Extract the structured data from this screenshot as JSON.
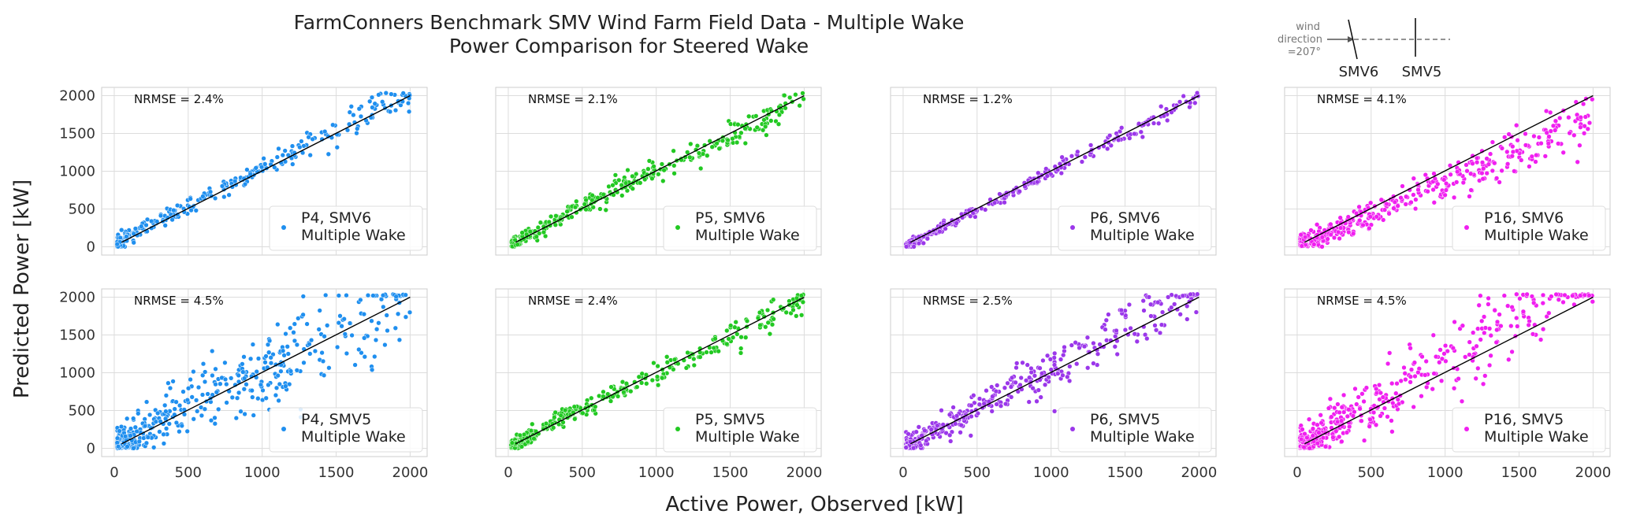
{
  "figure": {
    "title_line1": "FarmConners Benchmark SMV Wind Farm Field Data - Multiple Wake",
    "title_line2": "Power Comparison for Steered Wake",
    "xlabel": "Active Power, Observed [kW]",
    "ylabel": "Predicted Power [kW]"
  },
  "inset": {
    "wind_label_line1": "wind",
    "wind_label_line2": "direction",
    "wind_label_line3": "=207°",
    "turbine_a": "SMV6",
    "turbine_b": "SMV5"
  },
  "colors": {
    "P4": "#1f8fef",
    "P5": "#22c922",
    "P6": "#9b37ea",
    "P16": "#f01ff0",
    "identity_line": "#000000",
    "grid": "#dcdcdc",
    "frame": "#cccccc"
  },
  "chart_data": [
    {
      "type": "scatter",
      "row": 0,
      "col": 0,
      "legend": "P4, SMV6",
      "legend_line2": "Multiple Wake",
      "annotation": "NRMSE = 2.4%",
      "color_key": "P4",
      "profile": "tight_over",
      "xlim": [
        -85,
        2115
      ],
      "ylim": [
        -110,
        2110
      ],
      "xticks": [
        0,
        500,
        1000,
        1500,
        2000
      ],
      "yticks": [
        0,
        500,
        1000,
        1500,
        2000
      ],
      "identity_line": [
        [
          50,
          60
        ],
        [
          2000,
          2000
        ]
      ]
    },
    {
      "type": "scatter",
      "row": 0,
      "col": 1,
      "legend": "P5, SMV6",
      "legend_line2": "Multiple Wake",
      "annotation": "NRMSE = 2.1%",
      "color_key": "P5",
      "profile": "tight_mid",
      "xlim": [
        -85,
        2115
      ],
      "ylim": [
        -110,
        2110
      ],
      "xticks": [
        0,
        500,
        1000,
        1500,
        2000
      ],
      "yticks": [
        0,
        500,
        1000,
        1500,
        2000
      ],
      "identity_line": [
        [
          50,
          60
        ],
        [
          2000,
          2000
        ]
      ]
    },
    {
      "type": "scatter",
      "row": 0,
      "col": 2,
      "legend": "P6, SMV6",
      "legend_line2": "Multiple Wake",
      "annotation": "NRMSE = 1.2%",
      "color_key": "P6",
      "profile": "very_tight",
      "xlim": [
        -85,
        2115
      ],
      "ylim": [
        -110,
        2110
      ],
      "xticks": [
        0,
        500,
        1000,
        1500,
        2000
      ],
      "yticks": [
        0,
        500,
        1000,
        1500,
        2000
      ],
      "identity_line": [
        [
          50,
          60
        ],
        [
          2000,
          2000
        ]
      ]
    },
    {
      "type": "scatter",
      "row": 0,
      "col": 3,
      "legend": "P16, SMV6",
      "legend_line2": "Multiple Wake",
      "annotation": "NRMSE = 4.1%",
      "color_key": "P16",
      "profile": "under",
      "xlim": [
        -85,
        2115
      ],
      "ylim": [
        -110,
        2110
      ],
      "xticks": [
        0,
        500,
        1000,
        1500,
        2000
      ],
      "yticks": [
        0,
        500,
        1000,
        1500,
        2000
      ],
      "identity_line": [
        [
          50,
          60
        ],
        [
          2000,
          2000
        ]
      ]
    },
    {
      "type": "scatter",
      "row": 1,
      "col": 0,
      "legend": "P4, SMV5",
      "legend_line2": "Multiple Wake",
      "annotation": "NRMSE = 4.5%",
      "color_key": "P4",
      "profile": "wide",
      "xlim": [
        -85,
        2115
      ],
      "ylim": [
        -110,
        2110
      ],
      "xticks": [
        0,
        500,
        1000,
        1500,
        2000
      ],
      "yticks": [
        0,
        500,
        1000,
        1500,
        2000
      ],
      "identity_line": [
        [
          50,
          60
        ],
        [
          2000,
          2000
        ]
      ]
    },
    {
      "type": "scatter",
      "row": 1,
      "col": 1,
      "legend": "P5, SMV5",
      "legend_line2": "Multiple Wake",
      "annotation": "NRMSE = 2.4%",
      "color_key": "P5",
      "profile": "tight_mid",
      "xlim": [
        -85,
        2115
      ],
      "ylim": [
        -110,
        2110
      ],
      "xticks": [
        0,
        500,
        1000,
        1500,
        2000
      ],
      "yticks": [
        0,
        500,
        1000,
        1500,
        2000
      ],
      "identity_line": [
        [
          50,
          60
        ],
        [
          2000,
          2000
        ]
      ]
    },
    {
      "type": "scatter",
      "row": 1,
      "col": 2,
      "legend": "P6, SMV5",
      "legend_line2": "Multiple Wake",
      "annotation": "NRMSE = 2.5%",
      "color_key": "P6",
      "profile": "mid_over",
      "xlim": [
        -85,
        2115
      ],
      "ylim": [
        -110,
        2110
      ],
      "xticks": [
        0,
        500,
        1000,
        1500,
        2000
      ],
      "yticks": [
        0,
        500,
        1000,
        1500,
        2000
      ],
      "identity_line": [
        [
          50,
          60
        ],
        [
          2000,
          2000
        ]
      ]
    },
    {
      "type": "scatter",
      "row": 1,
      "col": 3,
      "legend": "P16, SMV5",
      "legend_line2": "Multiple Wake",
      "annotation": "NRMSE = 4.5%",
      "color_key": "P16",
      "profile": "wide_over",
      "xlim": [
        -85,
        2115
      ],
      "ylim": [
        -110,
        2110
      ],
      "xticks": [
        0,
        500,
        1000,
        1500,
        2000
      ],
      "yticks": [
        0,
        500,
        1000,
        1500,
        2000
      ],
      "identity_line": [
        [
          50,
          60
        ],
        [
          2000,
          2000
        ]
      ]
    }
  ]
}
